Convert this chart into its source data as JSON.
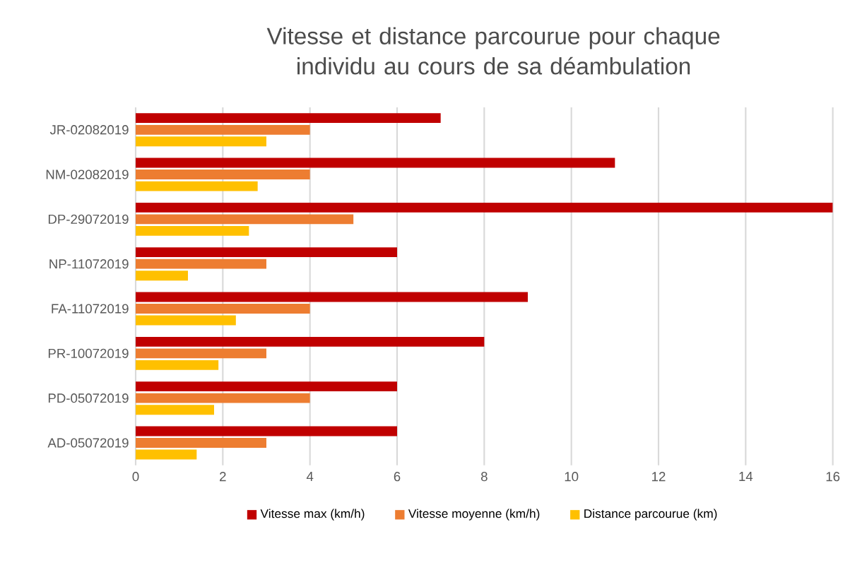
{
  "chart_data": {
    "type": "bar",
    "orientation": "horizontal",
    "title": "Vitesse et distance parcourue pour chaque individu au cours de sa déambulation",
    "categories": [
      "JR-02082019",
      "NM-02082019",
      "DP-29072019",
      "NP-11072019",
      "FA-11072019",
      "PR-10072019",
      "PD-05072019",
      "AD-05072019"
    ],
    "series": [
      {
        "name": "Vitesse max (km/h)",
        "color": "#c00000",
        "values": [
          7,
          11,
          16,
          6,
          9,
          8,
          6,
          6
        ]
      },
      {
        "name": "Vitesse moyenne (km/h)",
        "color": "#ed7d31",
        "values": [
          4,
          4,
          5,
          3,
          4,
          3,
          4,
          3
        ]
      },
      {
        "name": "Distance parcourue (km)",
        "color": "#ffc000",
        "values": [
          3.0,
          2.8,
          2.6,
          1.2,
          2.3,
          1.9,
          1.8,
          1.4
        ]
      }
    ],
    "xlim": [
      0,
      16
    ],
    "xticks": [
      0,
      2,
      4,
      6,
      8,
      10,
      12,
      14,
      16
    ],
    "grid": "x",
    "legend": "bottom"
  }
}
